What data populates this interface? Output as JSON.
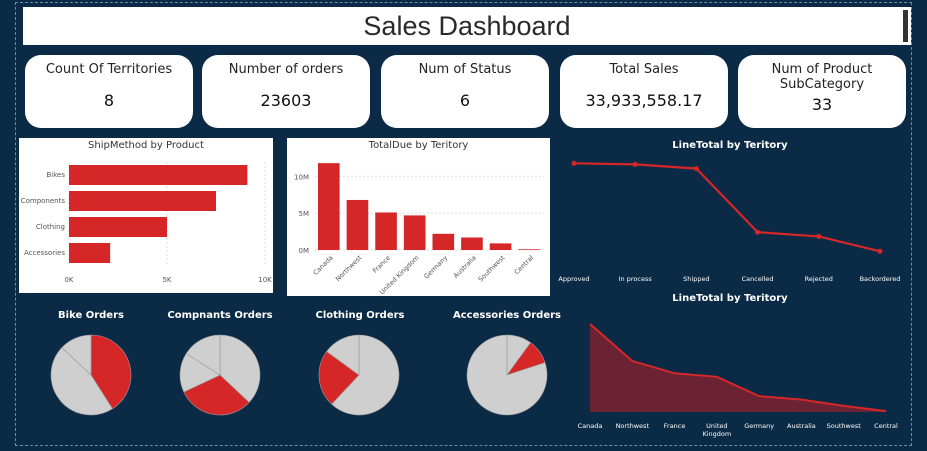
{
  "header": {
    "title": "Sales Dashboard"
  },
  "cards": [
    {
      "label": "Count Of Territories",
      "value": "8"
    },
    {
      "label": "Number of orders",
      "value": "23603"
    },
    {
      "label": "Num of Status",
      "value": "6"
    },
    {
      "label": "Total Sales",
      "value": "33,933,558.17"
    },
    {
      "label": "Num of Product SubCategory",
      "value": "33"
    }
  ],
  "colors": {
    "accent": "#d62728",
    "background": "#0b2a45",
    "pie_grey": "#cfcfcf"
  },
  "chart_data": [
    {
      "type": "bar",
      "orientation": "horizontal",
      "title": "ShipMethod by Product",
      "categories": [
        "Bikes",
        "Components",
        "Clothing",
        "Accessories"
      ],
      "values": [
        9100,
        7500,
        5000,
        2100
      ],
      "xlim": [
        0,
        10000
      ],
      "xticks": [
        "0K",
        "5K",
        "10K"
      ],
      "grid": true
    },
    {
      "type": "bar",
      "title": "TotalDue by Teritory",
      "categories": [
        "Canada",
        "Northwest",
        "France",
        "United Kingdom",
        "Germany",
        "Australia",
        "Southwest",
        "Central"
      ],
      "values": [
        11800000,
        6800000,
        5100000,
        4700000,
        2200000,
        1700000,
        900000,
        100000
      ],
      "ylim": [
        0,
        12500000
      ],
      "yticks": [
        "0M",
        "5M",
        "10M"
      ],
      "grid": true
    },
    {
      "type": "line",
      "title": "LineTotal by Teritory",
      "categories": [
        "Approved",
        "In process",
        "Shipped",
        "Cancelled",
        "Rejected",
        "Backordered"
      ],
      "values": [
        95,
        94,
        90,
        30,
        26,
        12
      ],
      "ylim": [
        0,
        100
      ]
    },
    {
      "type": "pie",
      "title": "Bike Orders",
      "slices": [
        {
          "value": 41,
          "color": "#d62728"
        },
        {
          "value": 46,
          "color": "#cfcfcf"
        },
        {
          "value": 13,
          "color": "#cfcfcf"
        }
      ]
    },
    {
      "type": "pie",
      "title": "Compnants Orders",
      "slices": [
        {
          "value": 37,
          "color": "#cfcfcf"
        },
        {
          "value": 31,
          "color": "#d62728"
        },
        {
          "value": 16,
          "color": "#cfcfcf"
        },
        {
          "value": 16,
          "color": "#cfcfcf"
        }
      ]
    },
    {
      "type": "pie",
      "title": "Clothing Orders",
      "slices": [
        {
          "value": 62,
          "color": "#cfcfcf"
        },
        {
          "value": 23,
          "color": "#d62728"
        },
        {
          "value": 15,
          "color": "#cfcfcf"
        }
      ]
    },
    {
      "type": "pie",
      "title": "Accessories Orders",
      "slices": [
        {
          "value": 10,
          "color": "#cfcfcf"
        },
        {
          "value": 10,
          "color": "#d62728"
        },
        {
          "value": 80,
          "color": "#cfcfcf"
        }
      ]
    },
    {
      "type": "area",
      "title": "LineTotal by Teritory",
      "categories": [
        "Canada",
        "Northwest",
        "France",
        "United Kingdom",
        "Germany",
        "Australia",
        "Southwest",
        "Central"
      ],
      "values": [
        100,
        58,
        44,
        40,
        18,
        14,
        7,
        1
      ],
      "ylim": [
        0,
        100
      ]
    }
  ]
}
